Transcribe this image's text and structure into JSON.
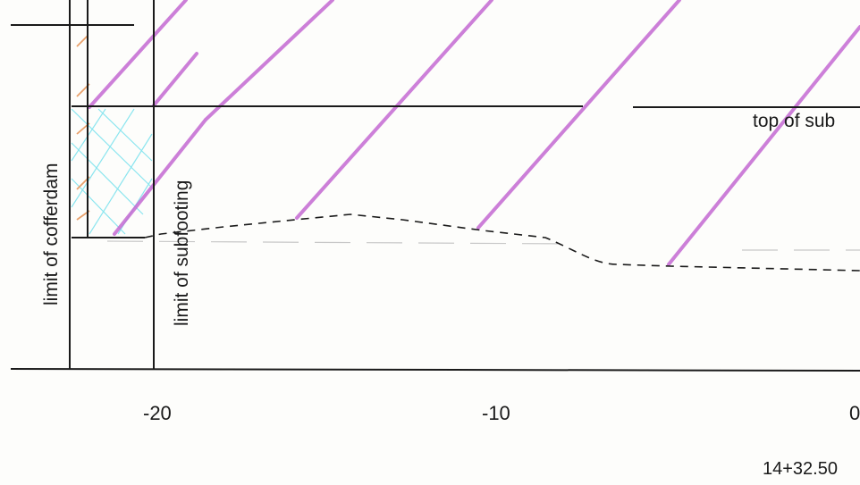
{
  "labels": {
    "limit_cofferdam": "limit of cofferdam",
    "limit_subfooting": "limit of subfooting",
    "top_of_sub": "top of sub",
    "tick_neg20": "-20",
    "tick_neg10": "-10",
    "tick_0": "0",
    "station": "14+32.50"
  },
  "colors": {
    "ink": "#1a1a1a",
    "hatch_magenta": "#c46ad2",
    "hatch_orange": "#e9a06a",
    "hatch_cyan": "#7fe3ee",
    "faint_line": "#c8c8c8"
  }
}
